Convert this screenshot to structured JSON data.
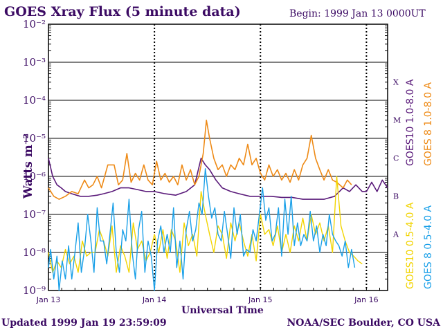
{
  "chart_data": {
    "type": "line",
    "title": "GOES Xray Flux (5 minute data)",
    "begin_label": "Begin: 1999 Jan 13 0000UT",
    "ylabel": "Watts m⁻²",
    "xlabel": "Universal Time",
    "y_scale": "log",
    "ylim": [
      1e-09,
      0.01
    ],
    "xlim": [
      0,
      3.2
    ],
    "y_ticks": [
      {
        "value": 1e-09,
        "label": "10⁻⁹"
      },
      {
        "value": 1e-08,
        "label": "10⁻⁸"
      },
      {
        "value": 1e-07,
        "label": "10⁻⁷"
      },
      {
        "value": 1e-06,
        "label": "10⁻⁶"
      },
      {
        "value": 1e-05,
        "label": "10⁻⁵"
      },
      {
        "value": 0.0001,
        "label": "10⁻⁴"
      },
      {
        "value": 0.001,
        "label": "10⁻³"
      },
      {
        "value": 0.01,
        "label": "10⁻²"
      }
    ],
    "x_ticks": [
      {
        "value": 0,
        "label": "Jan 13"
      },
      {
        "value": 1,
        "label": "Jan 14"
      },
      {
        "value": 2,
        "label": "Jan 15"
      },
      {
        "value": 3,
        "label": "Jan 16"
      }
    ],
    "flare_classes": [
      {
        "value": 0.0001,
        "label": "X"
      },
      {
        "value": 1e-05,
        "label": "M"
      },
      {
        "value": 1e-06,
        "label": "C"
      },
      {
        "value": 1e-07,
        "label": "B"
      },
      {
        "value": 1e-08,
        "label": "A"
      }
    ],
    "grid": true,
    "series": [
      {
        "name": "GOES10 1.0-8.0 A",
        "color": "#5a1a7a",
        "x": [
          0,
          0.04,
          0.08,
          0.12,
          0.16,
          0.22,
          0.3,
          0.38,
          0.46,
          0.52,
          0.6,
          0.68,
          0.76,
          0.84,
          0.92,
          1.0,
          1.1,
          1.2,
          1.3,
          1.38,
          1.44,
          1.48,
          1.52,
          1.58,
          1.64,
          1.72,
          1.8,
          1.9,
          2.0,
          2.1,
          2.2,
          2.3,
          2.4,
          2.5,
          2.6,
          2.7,
          2.78,
          2.84,
          2.9,
          2.96,
          3.0,
          3.05,
          3.1,
          3.15,
          3.2
        ],
        "y": [
          3e-06,
          1e-06,
          6e-07,
          5e-07,
          4e-07,
          3.5e-07,
          3e-07,
          3e-07,
          3.2e-07,
          3.5e-07,
          4e-07,
          5e-07,
          5e-07,
          4.5e-07,
          4e-07,
          4e-07,
          3.5e-07,
          3.2e-07,
          4e-07,
          6e-07,
          3e-06,
          2e-06,
          1.5e-06,
          8e-07,
          5e-07,
          4e-07,
          3.5e-07,
          3e-07,
          3e-07,
          3e-07,
          2.8e-07,
          2.8e-07,
          2.5e-07,
          2.5e-07,
          2.5e-07,
          3e-07,
          5e-07,
          4e-07,
          6e-07,
          4e-07,
          4e-07,
          7e-07,
          4e-07,
          8e-07,
          5e-07
        ]
      },
      {
        "name": "GOES 8 1.0-8.0 A",
        "color": "#ee8a16",
        "x": [
          0,
          0.05,
          0.1,
          0.16,
          0.22,
          0.28,
          0.34,
          0.38,
          0.42,
          0.46,
          0.5,
          0.56,
          0.62,
          0.66,
          0.7,
          0.74,
          0.78,
          0.82,
          0.86,
          0.9,
          0.94,
          0.98,
          1.02,
          1.06,
          1.1,
          1.14,
          1.18,
          1.22,
          1.26,
          1.3,
          1.34,
          1.38,
          1.42,
          1.46,
          1.49,
          1.52,
          1.56,
          1.6,
          1.64,
          1.68,
          1.72,
          1.76,
          1.8,
          1.84,
          1.88,
          1.92,
          1.96,
          2.0,
          2.04,
          2.08,
          2.12,
          2.16,
          2.2,
          2.24,
          2.28,
          2.32,
          2.36,
          2.4,
          2.44,
          2.48,
          2.52,
          2.56,
          2.6,
          2.64,
          2.68,
          2.72,
          2.78,
          2.82,
          2.86
        ],
        "y": [
          5e-07,
          3e-07,
          2.5e-07,
          3e-07,
          4e-07,
          3.5e-07,
          8e-07,
          5e-07,
          6e-07,
          1e-06,
          5e-07,
          2e-06,
          2e-06,
          6e-07,
          8e-07,
          4e-06,
          7e-07,
          1.2e-06,
          8e-07,
          2e-06,
          8e-07,
          6e-07,
          2.5e-06,
          8e-07,
          1.2e-06,
          7e-07,
          1e-06,
          6e-07,
          2e-06,
          8e-07,
          1.5e-06,
          6e-07,
          1e-06,
          4e-06,
          3e-05,
          1e-05,
          3e-06,
          1.5e-06,
          2e-06,
          1e-06,
          2e-06,
          1.5e-06,
          3e-06,
          2e-06,
          7e-06,
          2e-06,
          3e-06,
          1.2e-06,
          8e-07,
          2e-06,
          1e-06,
          1.5e-06,
          8e-07,
          1.2e-06,
          7e-07,
          1.5e-06,
          8e-07,
          2e-06,
          3e-06,
          1.2e-05,
          3e-06,
          1.5e-06,
          8e-07,
          1.5e-06,
          8e-07,
          7e-07,
          5e-07,
          8e-07,
          6e-07
        ]
      },
      {
        "name": "GOES10 0.5-4.0 A",
        "color": "#f2d400",
        "x": [
          0,
          0.04,
          0.08,
          0.12,
          0.16,
          0.2,
          0.24,
          0.28,
          0.32,
          0.36,
          0.4,
          0.44,
          0.48,
          0.52,
          0.56,
          0.6,
          0.64,
          0.68,
          0.72,
          0.76,
          0.8,
          0.84,
          0.88,
          0.92,
          0.96,
          1.0,
          1.04,
          1.08,
          1.12,
          1.16,
          1.2,
          1.24,
          1.28,
          1.32,
          1.36,
          1.4,
          1.44,
          1.48,
          1.52,
          1.56,
          1.6,
          1.64,
          1.68,
          1.72,
          1.76,
          1.8,
          1.84,
          1.88,
          1.92,
          1.96,
          2.0,
          2.04,
          2.08,
          2.12,
          2.16,
          2.2,
          2.24,
          2.28,
          2.32,
          2.36,
          2.4,
          2.44,
          2.48,
          2.52,
          2.56,
          2.6,
          2.64,
          2.68,
          2.72,
          2.76,
          2.8,
          2.84,
          2.88,
          2.92,
          2.96
        ],
        "y": [
          1e-08,
          3e-09,
          6e-09,
          4e-09,
          1.2e-08,
          5e-09,
          8e-09,
          3e-09,
          2e-08,
          8e-09,
          1e-08,
          1e-08,
          4e-08,
          2e-08,
          8e-09,
          5e-08,
          3e-09,
          1.5e-08,
          8e-09,
          3e-09,
          6e-08,
          1.2e-08,
          2e-08,
          6e-09,
          1e-08,
          3e-08,
          1e-08,
          4e-08,
          7e-09,
          4e-08,
          2e-08,
          3e-09,
          6e-08,
          1.5e-08,
          3e-08,
          8e-09,
          4e-07,
          1e-07,
          3e-08,
          1e-08,
          5e-08,
          3e-08,
          7e-09,
          6e-08,
          2e-08,
          6e-08,
          2e-08,
          8e-09,
          3e-08,
          6e-09,
          1e-07,
          3e-08,
          4e-08,
          1.5e-08,
          5e-08,
          1e-08,
          3e-08,
          1e-08,
          5e-08,
          2e-08,
          8e-08,
          2e-08,
          1e-07,
          3e-08,
          6e-08,
          2e-08,
          5e-08,
          1e-08,
          1e-06,
          5e-08,
          2e-08,
          1e-08,
          8e-09,
          6e-09,
          5e-09
        ]
      },
      {
        "name": "GOES 8 0.5-4.0 A",
        "color": "#1aa0e8",
        "x": [
          0,
          0.02,
          0.05,
          0.08,
          0.1,
          0.13,
          0.16,
          0.19,
          0.22,
          0.25,
          0.28,
          0.31,
          0.34,
          0.37,
          0.4,
          0.43,
          0.46,
          0.49,
          0.52,
          0.55,
          0.58,
          0.61,
          0.64,
          0.67,
          0.7,
          0.73,
          0.76,
          0.79,
          0.82,
          0.85,
          0.88,
          0.91,
          0.94,
          0.97,
          1.0,
          1.03,
          1.06,
          1.09,
          1.12,
          1.15,
          1.18,
          1.21,
          1.24,
          1.27,
          1.3,
          1.33,
          1.36,
          1.39,
          1.42,
          1.45,
          1.48,
          1.51,
          1.54,
          1.57,
          1.6,
          1.63,
          1.66,
          1.69,
          1.72,
          1.75,
          1.78,
          1.81,
          1.84,
          1.87,
          1.9,
          1.93,
          1.96,
          1.99,
          2.02,
          2.05,
          2.08,
          2.11,
          2.14,
          2.17,
          2.2,
          2.23,
          2.26,
          2.29,
          2.32,
          2.35,
          2.38,
          2.41,
          2.44,
          2.47,
          2.5,
          2.53,
          2.56,
          2.59,
          2.62,
          2.65,
          2.68,
          2.71,
          2.74,
          2.77,
          2.8,
          2.83,
          2.86,
          2.89
        ],
        "y": [
          4e-09,
          1.2e-08,
          2e-09,
          8e-09,
          1e-09,
          6e-09,
          2e-09,
          1.5e-08,
          2e-09,
          1e-08,
          6e-08,
          3e-09,
          1.2e-08,
          1e-07,
          2e-08,
          3e-09,
          1.5e-07,
          2e-08,
          2e-08,
          5e-09,
          3e-08,
          2e-07,
          1e-08,
          3e-09,
          4e-08,
          2e-08,
          2.5e-07,
          1e-08,
          2e-09,
          4e-08,
          1.2e-07,
          3e-09,
          2e-08,
          8e-09,
          1e-09,
          2e-08,
          5e-08,
          1e-08,
          3e-08,
          1e-08,
          1.5e-07,
          4e-09,
          2e-08,
          2e-09,
          4e-08,
          1.2e-07,
          2e-08,
          4e-08,
          2e-07,
          1e-07,
          1.6e-06,
          3e-07,
          8e-08,
          1.5e-07,
          3e-08,
          2e-08,
          1.2e-07,
          3e-08,
          7e-09,
          1.5e-07,
          3e-08,
          1e-07,
          8e-09,
          1.2e-08,
          1e-08,
          4e-08,
          2e-08,
          1e-07,
          5e-07,
          7e-08,
          1.5e-07,
          2e-08,
          3e-08,
          1.5e-07,
          8e-09,
          2.5e-07,
          3e-08,
          3e-07,
          1.5e-08,
          6e-08,
          1.5e-08,
          3e-08,
          2e-08,
          1.2e-07,
          2e-08,
          5e-08,
          1e-08,
          3e-08,
          1.5e-08,
          1e-07,
          3e-08,
          2e-08,
          1.5e-08,
          8e-09,
          2e-08,
          4e-09,
          1.2e-08,
          4e-09
        ]
      }
    ]
  },
  "footer": {
    "updated": "Updated 1999 Jan 19 23:59:09",
    "credit": "NOAA/SEC Boulder, CO USA"
  }
}
